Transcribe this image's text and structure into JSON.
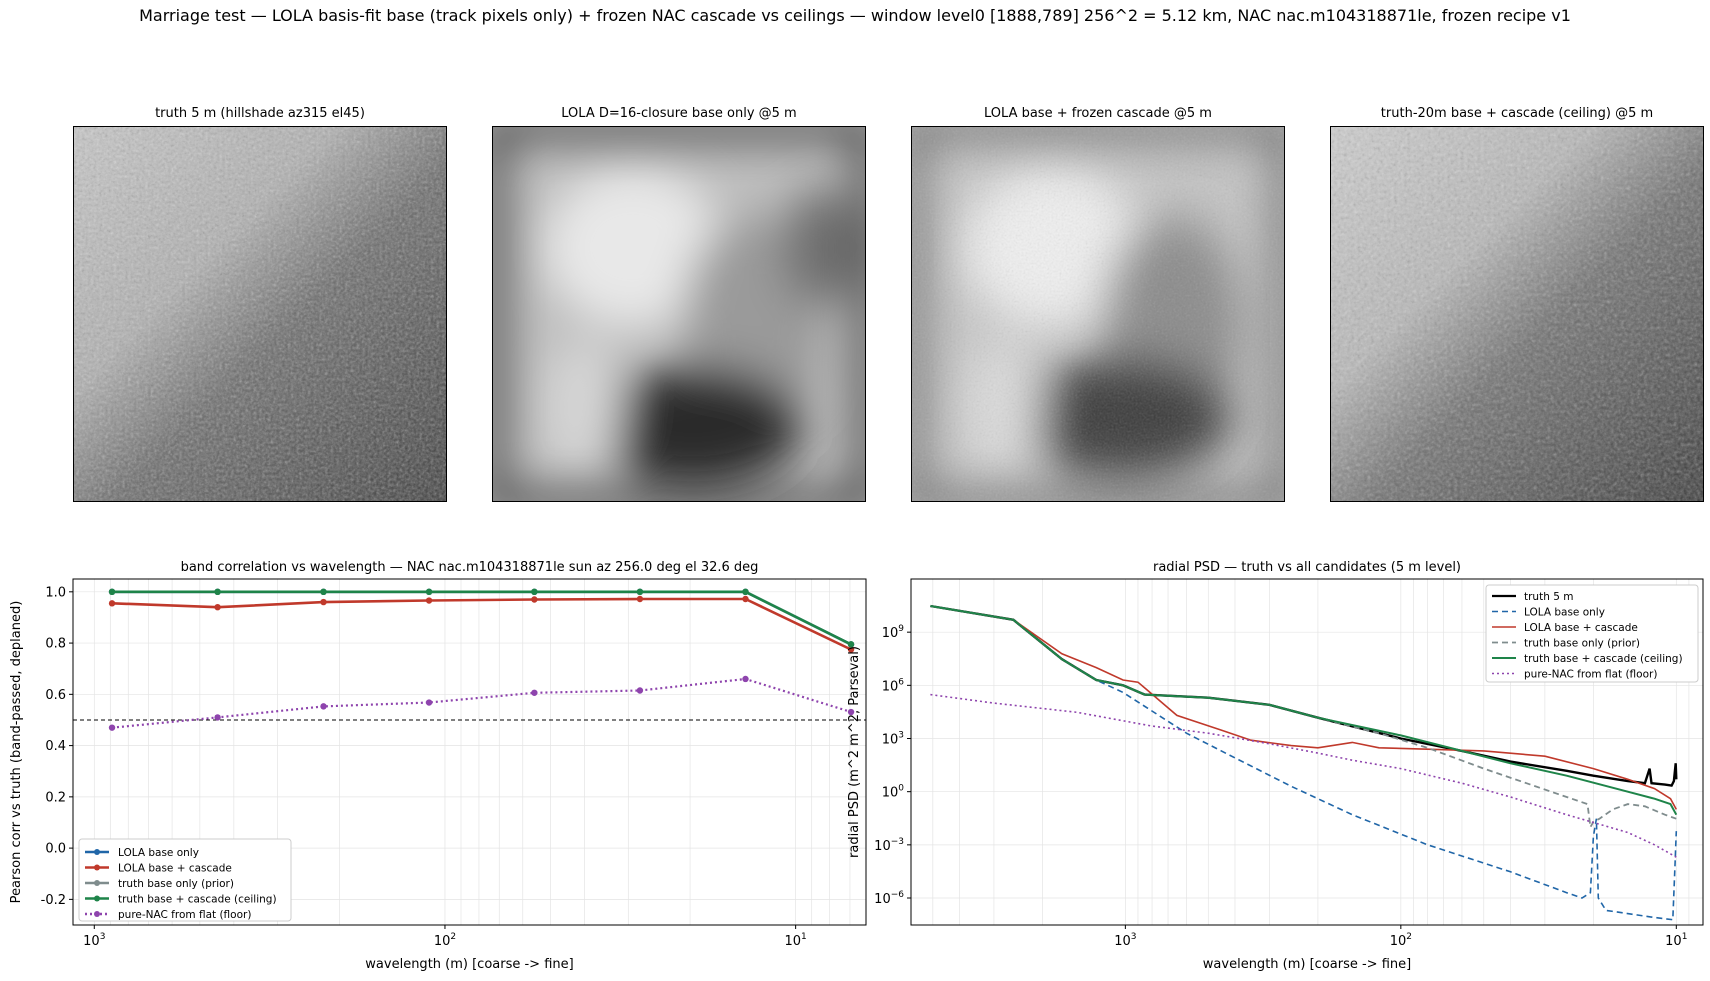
{
  "suptitle": "Marriage test — LOLA basis-fit base (track pixels only) + frozen NAC cascade vs ceilings — window level0 [1888,789] 256^2 = 5.12 km, NAC nac.m104318871le, frozen recipe v1",
  "panels": [
    {
      "title": "truth 5 m (hillshade az315 el45)"
    },
    {
      "title": "LOLA D=16-closure base only @5 m"
    },
    {
      "title": "LOLA base + frozen cascade @5 m"
    },
    {
      "title": "truth-20m base + cascade (ceiling) @5 m"
    }
  ],
  "colors": {
    "lola_base": "#2066a8",
    "lola_cascade": "#c0392b",
    "truth_base": "#7f8c8d",
    "truth_cascade": "#1e8449",
    "pure_nac": "#8e44ad",
    "truth": "#000000"
  },
  "chart_data": [
    {
      "type": "line",
      "title": "band correlation vs wavelength — NAC nac.m104318871le sun az 256.0 deg el 32.6 deg",
      "xlabel": "wavelength (m)  [coarse -> fine]",
      "ylabel": "Pearson corr vs truth (band-passed, deplaned)",
      "xscale": "log-reversed",
      "xlim": [
        1150,
        6.3
      ],
      "ylim": [
        -0.3,
        1.05
      ],
      "xticks": [
        {
          "v": 1000,
          "base": "10",
          "exp": "3"
        },
        {
          "v": 100,
          "base": "10",
          "exp": "2"
        },
        {
          "v": 10,
          "base": "10",
          "exp": "1"
        }
      ],
      "yticks": [
        "-0.2",
        "0.0",
        "0.2",
        "0.4",
        "0.6",
        "0.8",
        "1.0"
      ],
      "grid": true,
      "legend_position": "lower-left",
      "hline": 0.5,
      "x": [
        890,
        445,
        222,
        111,
        55.6,
        27.8,
        13.9,
        6.95
      ],
      "series": [
        {
          "name": "LOLA base only",
          "key": "lola_base",
          "style": "solid",
          "values": [
            1.0,
            1.0,
            1.0,
            1.0,
            1.0,
            1.0,
            1.0,
            0.795
          ]
        },
        {
          "name": "LOLA base + cascade",
          "key": "lola_cascade",
          "style": "solid",
          "values": [
            0.955,
            0.94,
            0.96,
            0.966,
            0.97,
            0.972,
            0.972,
            0.775
          ]
        },
        {
          "name": "truth base only (prior)",
          "key": "truth_base",
          "style": "solid",
          "values": [
            1.0,
            1.0,
            1.0,
            1.0,
            1.0,
            1.0,
            1.0,
            0.795
          ]
        },
        {
          "name": "truth base + cascade (ceiling)",
          "key": "truth_cascade",
          "style": "solid",
          "values": [
            1.0,
            1.0,
            1.0,
            1.0,
            1.0,
            1.0,
            1.0,
            0.795
          ]
        },
        {
          "name": "pure-NAC from flat (floor)",
          "key": "pure_nac",
          "style": "dotted",
          "values": [
            0.47,
            0.51,
            0.553,
            0.568,
            0.606,
            0.615,
            0.66,
            0.531
          ]
        }
      ]
    },
    {
      "type": "line",
      "title": "radial PSD — truth vs all candidates (5 m level)",
      "xlabel": "wavelength (m)  [coarse -> fine]",
      "ylabel": "radial PSD (m^2 m^2, Parseval)",
      "xscale": "log-reversed",
      "yscale": "log",
      "xlim": [
        6000,
        8
      ],
      "ylim": [
        3e-08,
        1000000000000.0
      ],
      "xticks": [
        {
          "v": 1000,
          "base": "10",
          "exp": "3"
        },
        {
          "v": 100,
          "base": "10",
          "exp": "2"
        },
        {
          "v": 10,
          "base": "10",
          "exp": "1"
        }
      ],
      "yticks": [
        {
          "v": 1e-06,
          "base": "10",
          "exp": "−6"
        },
        {
          "v": 0.001,
          "base": "10",
          "exp": "−3"
        },
        {
          "v": 1,
          "base": "10",
          "exp": "0"
        },
        {
          "v": 1000.0,
          "base": "10",
          "exp": "3"
        },
        {
          "v": 1000000.0,
          "base": "10",
          "exp": "6"
        },
        {
          "v": 1000000000.0,
          "base": "10",
          "exp": "9"
        }
      ],
      "grid": true,
      "legend_position": "upper-right",
      "series": [
        {
          "name": "truth 5 m",
          "key": "truth",
          "style": "solid",
          "width": 2.4,
          "points": [
            [
              5100,
              30000000000.0
            ],
            [
              2550,
              5000000000.0
            ],
            [
              1700,
              30000000.0
            ],
            [
              1275,
              2000000.0
            ],
            [
              1020,
              1000000.0
            ],
            [
              850,
              300000.0
            ],
            [
              500,
              200000.0
            ],
            [
              300,
              80000.0
            ],
            [
              200,
              15000.0
            ],
            [
              100,
              1000.0
            ],
            [
              60,
              200.0
            ],
            [
              40,
              50
            ],
            [
              25,
              15
            ],
            [
              20,
              8
            ],
            [
              15,
              4
            ],
            [
              13,
              3
            ],
            [
              12.5,
              20
            ],
            [
              12.3,
              3
            ],
            [
              11,
              2.5
            ],
            [
              10.4,
              2.2
            ],
            [
              10.2,
              4
            ],
            [
              10.05,
              40
            ],
            [
              10,
              5
            ]
          ]
        },
        {
          "name": "LOLA base only",
          "key": "lola_base",
          "style": "dashed",
          "width": 1.6,
          "points": [
            [
              5100,
              30000000000.0
            ],
            [
              2550,
              5000000000.0
            ],
            [
              1700,
              30000000.0
            ],
            [
              1275,
              2000000.0
            ],
            [
              1020,
              400000.0
            ],
            [
              600,
              2000.0
            ],
            [
              400,
              80
            ],
            [
              250,
              2
            ],
            [
              150,
              0.05
            ],
            [
              80,
              0.001
            ],
            [
              40,
              3e-05
            ],
            [
              25,
              2e-06
            ],
            [
              22,
              1e-06
            ],
            [
              20.5,
              2e-06
            ],
            [
              20,
              0.003
            ],
            [
              19.5,
              0.03
            ],
            [
              19.2,
              1e-06
            ],
            [
              18,
              2e-07
            ],
            [
              12,
              8e-08
            ],
            [
              10.3,
              6e-08
            ],
            [
              10.1,
              0.0001
            ],
            [
              10,
              0.006
            ]
          ]
        },
        {
          "name": "LOLA base + cascade",
          "key": "lola_cascade",
          "style": "solid",
          "width": 1.6,
          "points": [
            [
              5100,
              30000000000.0
            ],
            [
              2550,
              5000000000.0
            ],
            [
              1700,
              60000000.0
            ],
            [
              1275,
              10000000.0
            ],
            [
              1020,
              2000000.0
            ],
            [
              900,
              1500000.0
            ],
            [
              650,
              20000.0
            ],
            [
              450,
              3000.0
            ],
            [
              350,
              800
            ],
            [
              250,
              400
            ],
            [
              200,
              300
            ],
            [
              150,
              600
            ],
            [
              120,
              300
            ],
            [
              80,
              250
            ],
            [
              50,
              200
            ],
            [
              30,
              100
            ],
            [
              20,
              20
            ],
            [
              15,
              5
            ],
            [
              12,
              1.5
            ],
            [
              10.5,
              0.4
            ],
            [
              10,
              0.1
            ]
          ]
        },
        {
          "name": "truth base only (prior)",
          "key": "truth_base",
          "style": "dashed",
          "width": 1.8,
          "points": [
            [
              5100,
              30000000000.0
            ],
            [
              2550,
              5000000000.0
            ],
            [
              1700,
              30000000.0
            ],
            [
              1275,
              2000000.0
            ],
            [
              1020,
              1000000.0
            ],
            [
              850,
              300000.0
            ],
            [
              500,
              200000.0
            ],
            [
              300,
              80000.0
            ],
            [
              200,
              15000.0
            ],
            [
              120,
              2000.0
            ],
            [
              80,
              300
            ],
            [
              50,
              20
            ],
            [
              35,
              3
            ],
            [
              25,
              0.5
            ],
            [
              21,
              0.2
            ],
            [
              20.5,
              0.01
            ],
            [
              20,
              0.02
            ],
            [
              19,
              0.03
            ],
            [
              17,
              0.1
            ],
            [
              15,
              0.2
            ],
            [
              13,
              0.15
            ],
            [
              11,
              0.05
            ],
            [
              10,
              0.03
            ]
          ]
        },
        {
          "name": "truth base + cascade (ceiling)",
          "key": "truth_cascade",
          "style": "solid",
          "width": 2,
          "points": [
            [
              5100,
              30000000000.0
            ],
            [
              2550,
              5000000000.0
            ],
            [
              1700,
              30000000.0
            ],
            [
              1275,
              2000000.0
            ],
            [
              1020,
              1000000.0
            ],
            [
              850,
              300000.0
            ],
            [
              500,
              200000.0
            ],
            [
              300,
              80000.0
            ],
            [
              200,
              15000.0
            ],
            [
              100,
              1500.0
            ],
            [
              60,
              200.0
            ],
            [
              40,
              40
            ],
            [
              25,
              8
            ],
            [
              15,
              1
            ],
            [
              12,
              0.4
            ],
            [
              10.5,
              0.2
            ],
            [
              10,
              0.05
            ]
          ]
        },
        {
          "name": "pure-NAC from flat (floor)",
          "key": "pure_nac",
          "style": "dotted",
          "width": 1.6,
          "points": [
            [
              5100,
              300000.0
            ],
            [
              3000,
              100000.0
            ],
            [
              1500,
              30000.0
            ],
            [
              800,
              5000.0
            ],
            [
              500,
              2000.0
            ],
            [
              300,
              500
            ],
            [
              200,
              150
            ],
            [
              150,
              60
            ],
            [
              100,
              20
            ],
            [
              60,
              3
            ],
            [
              40,
              0.5
            ],
            [
              25,
              0.05
            ],
            [
              15,
              0.005
            ],
            [
              12,
              0.001
            ],
            [
              10,
              0.0002
            ]
          ]
        }
      ]
    }
  ]
}
